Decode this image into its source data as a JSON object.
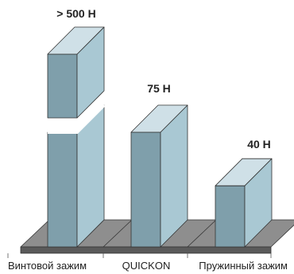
{
  "chart_data": {
    "type": "bar",
    "style": "3d",
    "categories": [
      "Винтовой зажим",
      "QUICKON",
      "Пружинный зажим"
    ],
    "value_labels": [
      "> 500 H",
      "75 H",
      "40 H"
    ],
    "values": [
      500,
      75,
      40
    ],
    "axis_break_on_first_bar": true,
    "grid": false,
    "legend": "none",
    "colors": {
      "front": "#7f9fab",
      "side": "#a9c8d3",
      "top": "#cfe0e7",
      "edge": "#333333",
      "base_top": "#8e8e8e",
      "base_front": "#5a5a5a"
    }
  }
}
